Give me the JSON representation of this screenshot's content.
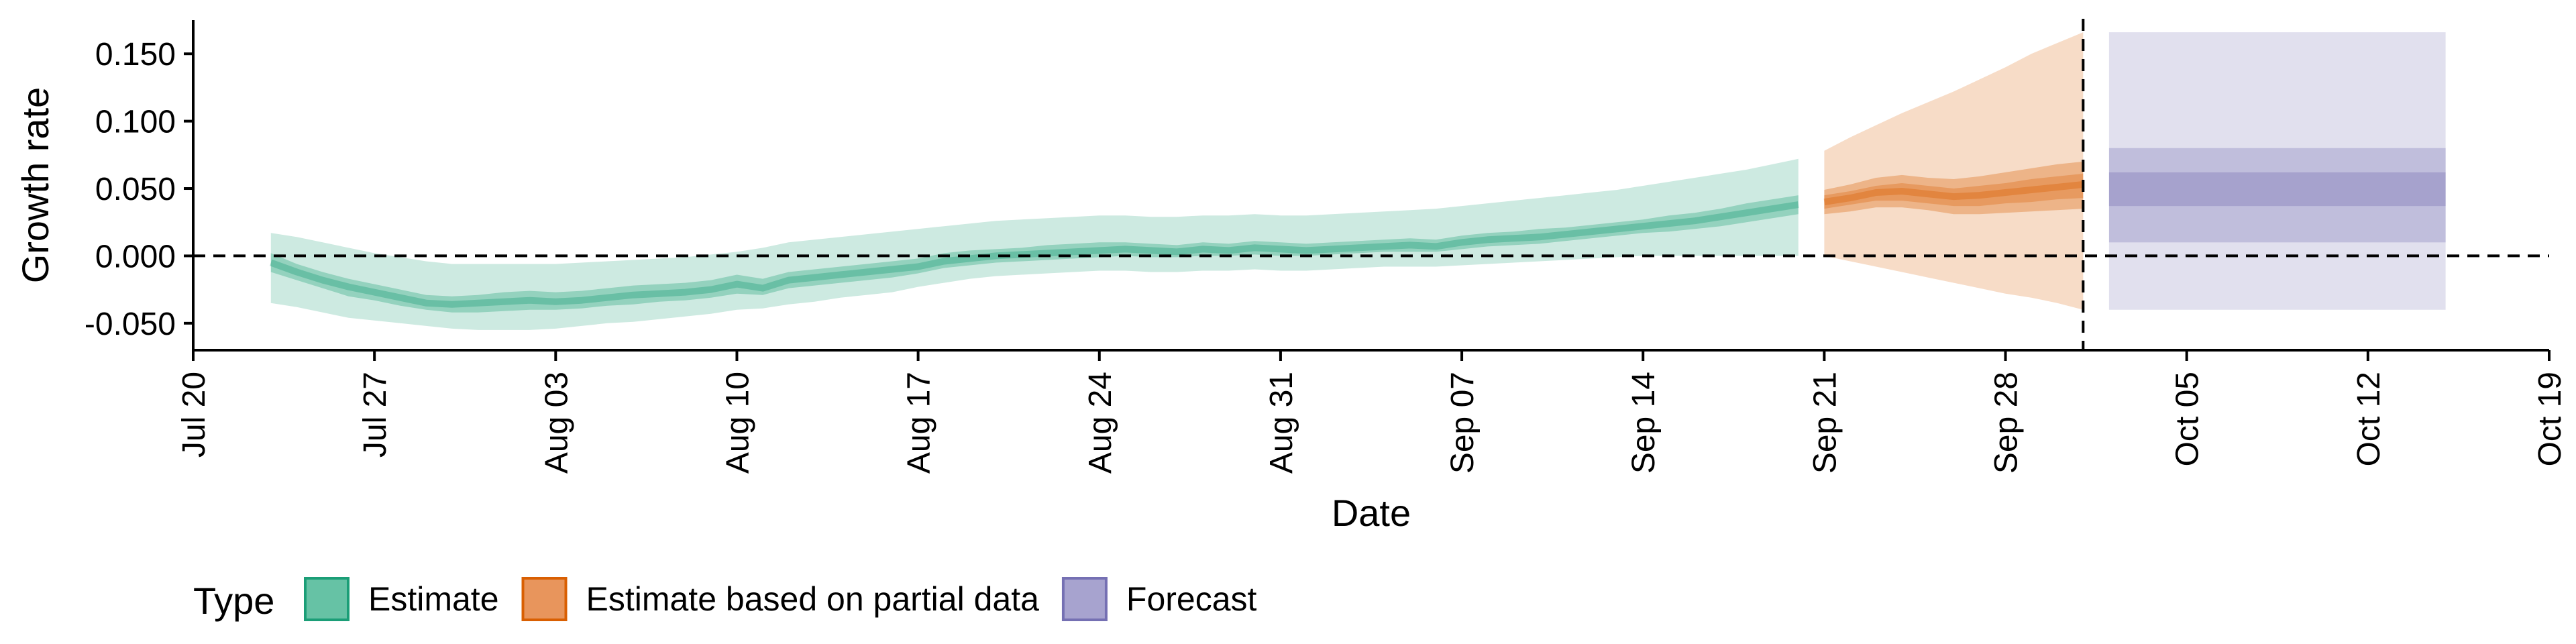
{
  "chart_data": {
    "type": "area",
    "xlabel": "Date",
    "ylabel": "Growth rate",
    "xlim": [
      "2020-07-20",
      "2020-10-19"
    ],
    "ylim": [
      -0.07,
      0.175
    ],
    "x_ticks": [
      "2020-07-20",
      "2020-07-27",
      "2020-08-03",
      "2020-08-10",
      "2020-08-17",
      "2020-08-24",
      "2020-08-31",
      "2020-09-07",
      "2020-09-14",
      "2020-09-21",
      "2020-09-28",
      "2020-10-05",
      "2020-10-12",
      "2020-10-19"
    ],
    "x_tick_labels": [
      "Jul 20",
      "Jul 27",
      "Aug 03",
      "Aug 10",
      "Aug 17",
      "Aug 24",
      "Aug 31",
      "Sep 07",
      "Sep 14",
      "Sep 21",
      "Sep 28",
      "Oct 05",
      "Oct 12",
      "Oct 19"
    ],
    "y_ticks": [
      -0.05,
      0.0,
      0.05,
      0.1,
      0.15
    ],
    "y_tick_labels": [
      "-0.050",
      "0.000",
      "0.050",
      "0.100",
      "0.150"
    ],
    "hline": 0.0,
    "vline": "2020-10-01",
    "grid": false,
    "legend": {
      "title": "Type",
      "position": "bottom-left",
      "entries": [
        {
          "label": "Estimate",
          "fill": "#66c2a5",
          "stroke": "#1b9e77"
        },
        {
          "label": "Estimate based on partial data",
          "fill": "#e8955c",
          "stroke": "#d95f02"
        },
        {
          "label": "Forecast",
          "fill": "#a7a3cf",
          "stroke": "#7570b3"
        }
      ]
    },
    "colors": {
      "estimate": "#1b9e77",
      "partial": "#d95f02",
      "forecast": "#7570b3"
    },
    "series": [
      {
        "type": "Estimate",
        "x": [
          "2020-07-23",
          "2020-07-24",
          "2020-07-25",
          "2020-07-26",
          "2020-07-27",
          "2020-07-28",
          "2020-07-29",
          "2020-07-30",
          "2020-07-31",
          "2020-08-01",
          "2020-08-02",
          "2020-08-03",
          "2020-08-04",
          "2020-08-05",
          "2020-08-06",
          "2020-08-07",
          "2020-08-08",
          "2020-08-09",
          "2020-08-10",
          "2020-08-11",
          "2020-08-12",
          "2020-08-13",
          "2020-08-14",
          "2020-08-15",
          "2020-08-16",
          "2020-08-17",
          "2020-08-18",
          "2020-08-19",
          "2020-08-20",
          "2020-08-21",
          "2020-08-22",
          "2020-08-23",
          "2020-08-24",
          "2020-08-25",
          "2020-08-26",
          "2020-08-27",
          "2020-08-28",
          "2020-08-29",
          "2020-08-30",
          "2020-08-31",
          "2020-09-01",
          "2020-09-02",
          "2020-09-03",
          "2020-09-04",
          "2020-09-05",
          "2020-09-06",
          "2020-09-07",
          "2020-09-08",
          "2020-09-09",
          "2020-09-10",
          "2020-09-11",
          "2020-09-12",
          "2020-09-13",
          "2020-09-14",
          "2020-09-15",
          "2020-09-16",
          "2020-09-17",
          "2020-09-18",
          "2020-09-19",
          "2020-09-20"
        ],
        "median": [
          -0.005,
          -0.012,
          -0.018,
          -0.023,
          -0.027,
          -0.031,
          -0.035,
          -0.036,
          -0.035,
          -0.034,
          -0.033,
          -0.034,
          -0.033,
          -0.031,
          -0.029,
          -0.028,
          -0.027,
          -0.025,
          -0.021,
          -0.024,
          -0.018,
          -0.016,
          -0.014,
          -0.012,
          -0.01,
          -0.008,
          -0.004,
          -0.002,
          0.0,
          0.001,
          0.002,
          0.003,
          0.004,
          0.005,
          0.004,
          0.003,
          0.005,
          0.004,
          0.006,
          0.005,
          0.004,
          0.005,
          0.006,
          0.007,
          0.008,
          0.007,
          0.01,
          0.012,
          0.013,
          0.014,
          0.016,
          0.018,
          0.02,
          0.022,
          0.024,
          0.026,
          0.029,
          0.032,
          0.035,
          0.038
        ],
        "lower_50": [
          -0.012,
          -0.018,
          -0.024,
          -0.03,
          -0.033,
          -0.037,
          -0.04,
          -0.042,
          -0.042,
          -0.041,
          -0.04,
          -0.04,
          -0.039,
          -0.037,
          -0.036,
          -0.034,
          -0.033,
          -0.031,
          -0.028,
          -0.029,
          -0.024,
          -0.022,
          -0.02,
          -0.018,
          -0.016,
          -0.013,
          -0.009,
          -0.007,
          -0.005,
          -0.004,
          -0.003,
          -0.002,
          -0.001,
          -0.0,
          -0.001,
          -0.001,
          0.0,
          -0.0,
          0.001,
          0.0,
          -0.0,
          0.001,
          0.002,
          0.003,
          0.003,
          0.003,
          0.005,
          0.007,
          0.008,
          0.009,
          0.011,
          0.013,
          0.015,
          0.017,
          0.018,
          0.02,
          0.022,
          0.025,
          0.028,
          0.031
        ],
        "upper_50": [
          0.002,
          -0.006,
          -0.012,
          -0.017,
          -0.021,
          -0.025,
          -0.029,
          -0.03,
          -0.029,
          -0.027,
          -0.026,
          -0.027,
          -0.026,
          -0.024,
          -0.022,
          -0.021,
          -0.02,
          -0.018,
          -0.014,
          -0.017,
          -0.012,
          -0.01,
          -0.008,
          -0.006,
          -0.004,
          -0.002,
          0.002,
          0.004,
          0.005,
          0.006,
          0.008,
          0.009,
          0.01,
          0.01,
          0.009,
          0.008,
          0.01,
          0.009,
          0.011,
          0.01,
          0.009,
          0.01,
          0.011,
          0.012,
          0.013,
          0.012,
          0.015,
          0.017,
          0.018,
          0.02,
          0.021,
          0.023,
          0.025,
          0.027,
          0.03,
          0.032,
          0.035,
          0.039,
          0.042,
          0.045
        ],
        "lower_90": [
          -0.035,
          -0.038,
          -0.042,
          -0.046,
          -0.048,
          -0.05,
          -0.052,
          -0.054,
          -0.055,
          -0.055,
          -0.055,
          -0.054,
          -0.052,
          -0.05,
          -0.049,
          -0.047,
          -0.045,
          -0.043,
          -0.04,
          -0.039,
          -0.036,
          -0.034,
          -0.031,
          -0.029,
          -0.027,
          -0.023,
          -0.02,
          -0.017,
          -0.015,
          -0.014,
          -0.013,
          -0.012,
          -0.011,
          -0.011,
          -0.012,
          -0.012,
          -0.011,
          -0.011,
          -0.01,
          -0.011,
          -0.011,
          -0.01,
          -0.009,
          -0.008,
          -0.008,
          -0.008,
          -0.007,
          -0.006,
          -0.005,
          -0.004,
          -0.003,
          -0.002,
          -0.001,
          0.0,
          0.0,
          0.0,
          0.0,
          0.0,
          0.0,
          0.0
        ],
        "upper_90": [
          0.017,
          0.014,
          0.01,
          0.006,
          0.002,
          -0.001,
          -0.004,
          -0.006,
          -0.006,
          -0.006,
          -0.006,
          -0.006,
          -0.005,
          -0.004,
          -0.003,
          -0.002,
          -0.001,
          0.001,
          0.003,
          0.006,
          0.01,
          0.012,
          0.014,
          0.016,
          0.018,
          0.02,
          0.022,
          0.024,
          0.026,
          0.027,
          0.028,
          0.029,
          0.03,
          0.03,
          0.029,
          0.029,
          0.03,
          0.03,
          0.031,
          0.03,
          0.03,
          0.031,
          0.032,
          0.033,
          0.034,
          0.035,
          0.037,
          0.039,
          0.041,
          0.043,
          0.045,
          0.047,
          0.049,
          0.052,
          0.055,
          0.058,
          0.061,
          0.064,
          0.068,
          0.072
        ]
      },
      {
        "type": "Estimate based on partial data",
        "x": [
          "2020-09-21",
          "2020-09-22",
          "2020-09-23",
          "2020-09-24",
          "2020-09-25",
          "2020-09-26",
          "2020-09-27",
          "2020-09-28",
          "2020-09-29",
          "2020-09-30",
          "2020-10-01"
        ],
        "median": [
          0.04,
          0.043,
          0.047,
          0.048,
          0.046,
          0.044,
          0.045,
          0.047,
          0.049,
          0.051,
          0.053
        ],
        "lower_50": [
          0.031,
          0.033,
          0.036,
          0.036,
          0.034,
          0.031,
          0.031,
          0.032,
          0.033,
          0.034,
          0.035
        ],
        "upper_50": [
          0.049,
          0.053,
          0.058,
          0.06,
          0.058,
          0.057,
          0.059,
          0.062,
          0.065,
          0.068,
          0.07
        ],
        "lower_25": [
          0.035,
          0.038,
          0.041,
          0.041,
          0.039,
          0.037,
          0.037,
          0.039,
          0.04,
          0.042,
          0.043
        ],
        "upper_25": [
          0.045,
          0.048,
          0.052,
          0.054,
          0.052,
          0.05,
          0.052,
          0.054,
          0.057,
          0.059,
          0.061
        ],
        "lower_90": [
          0.0,
          -0.004,
          -0.008,
          -0.012,
          -0.016,
          -0.02,
          -0.024,
          -0.028,
          -0.031,
          -0.035,
          -0.04
        ],
        "upper_90": [
          0.078,
          0.088,
          0.097,
          0.106,
          0.114,
          0.122,
          0.131,
          0.14,
          0.15,
          0.158,
          0.166
        ]
      },
      {
        "type": "Forecast",
        "x": [
          "2020-10-02",
          "2020-10-15"
        ],
        "median": [
          0.05,
          0.05
        ],
        "lower_25": [
          0.037,
          0.037
        ],
        "upper_25": [
          0.062,
          0.062
        ],
        "lower_50": [
          0.01,
          0.01
        ],
        "upper_50": [
          0.08,
          0.08
        ],
        "lower_90": [
          -0.04,
          -0.04
        ],
        "upper_90": [
          0.166,
          0.166
        ]
      }
    ]
  }
}
